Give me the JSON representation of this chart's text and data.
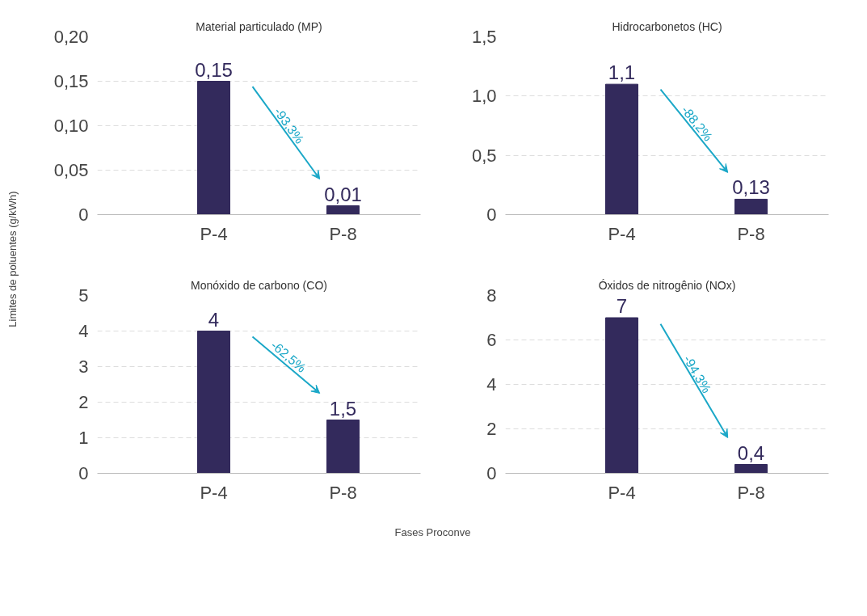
{
  "chart_data": [
    {
      "type": "bar",
      "title": "Material particulado (MP)",
      "ylabel": "Limites de poluentes (g/kWh)",
      "xlabel": "Fases Proconve",
      "categories": [
        "P-4",
        "P-8"
      ],
      "values": [
        0.15,
        0.01
      ],
      "value_labels": [
        "0,15",
        "0,01"
      ],
      "color": "#332a5c",
      "ylim": [
        0,
        0.2
      ],
      "yticks": [
        0,
        {
          "value": 0.05,
          "label": "0,05"
        },
        {
          "value": 0.1,
          "label": "0,10"
        },
        {
          "value": 0.15,
          "label": "0,15"
        },
        {
          "value": 0.2,
          "label": "0,20"
        }
      ],
      "grid": "y",
      "annotations": [
        "-93,3%"
      ]
    },
    {
      "type": "bar",
      "title": "Hidrocarbonetos (HC)",
      "categories": [
        "P-4",
        "P-8"
      ],
      "values": [
        1.1,
        0.13
      ],
      "value_labels": [
        "1,1",
        "0,13"
      ],
      "color": "#332a5c",
      "ylim": [
        0,
        1.5
      ],
      "yticks": [
        0,
        {
          "value": 0.5,
          "label": "0,5"
        },
        {
          "value": 1.0,
          "label": "1,0"
        },
        {
          "value": 1.5,
          "label": "1,5"
        }
      ],
      "grid": "y",
      "annotations": [
        "-88,2%"
      ]
    },
    {
      "type": "bar",
      "title": "Monóxido de carbono (CO)",
      "categories": [
        "P-4",
        "P-8"
      ],
      "values": [
        4,
        1.5
      ],
      "value_labels": [
        "4",
        "1,5"
      ],
      "color": "#332a5c",
      "ylim": [
        0,
        5
      ],
      "yticks": [
        0,
        1,
        2,
        3,
        4,
        5
      ],
      "grid": "y",
      "annotations": [
        "-62,5%"
      ]
    },
    {
      "type": "bar",
      "title": "Óxidos de nitrogênio (NOx)",
      "categories": [
        "P-4",
        "P-8"
      ],
      "values": [
        7,
        0.4
      ],
      "value_labels": [
        "7",
        "0,4"
      ],
      "color": "#332a5c",
      "ylim": [
        0,
        8
      ],
      "yticks": [
        0,
        2,
        4,
        6,
        8
      ],
      "grid": "y",
      "annotations": [
        "-94,3%"
      ]
    }
  ]
}
